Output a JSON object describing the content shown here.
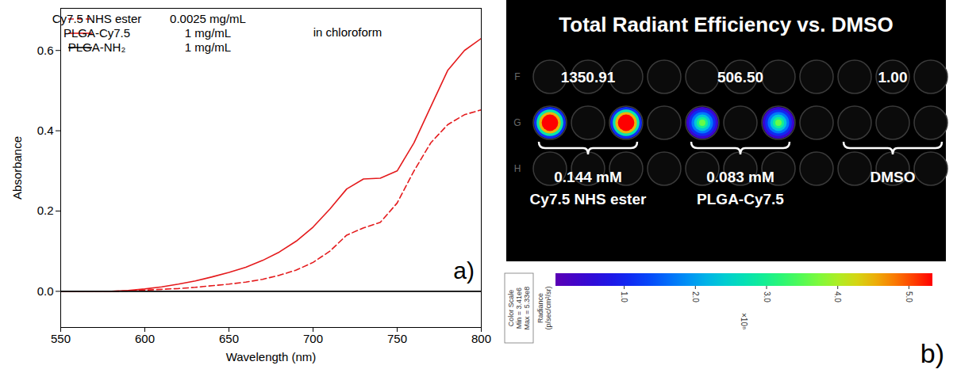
{
  "chart_data": {
    "type": "line",
    "panel_label": "a)",
    "x_label": "Wavelength (nm)",
    "y_label": "Absorbance",
    "annotations": [
      "in chloroform"
    ],
    "x": [
      550,
      560,
      570,
      580,
      590,
      600,
      610,
      620,
      630,
      640,
      650,
      660,
      670,
      680,
      690,
      700,
      710,
      720,
      730,
      740,
      750,
      760,
      770,
      780,
      790,
      800
    ],
    "xlim": [
      550,
      800
    ],
    "xticks": [
      550,
      600,
      650,
      700,
      750,
      800
    ],
    "ylim": [
      -0.09,
      0.705
    ],
    "yticks": [
      {
        "value": 0,
        "label": "0.0"
      },
      {
        "value": 0.2,
        "label": "0.2"
      },
      {
        "value": 0.4,
        "label": "0.4"
      },
      {
        "value": 0.6,
        "label": "0.6"
      }
    ],
    "grid": false,
    "legend": "top-left",
    "series": [
      {
        "name": "Cy7.5 NHS ester",
        "concentration": "0.0025 mg/mL",
        "color": "#e41a1c",
        "line_style": "dashed",
        "values": [
          0,
          0,
          0,
          0,
          0.001,
          0.003,
          0.005,
          0.007,
          0.01,
          0.014,
          0.018,
          0.023,
          0.03,
          0.04,
          0.053,
          0.072,
          0.1,
          0.14,
          0.158,
          0.172,
          0.22,
          0.3,
          0.37,
          0.415,
          0.44,
          0.452
        ]
      },
      {
        "name": "PLGA-Cy7.5",
        "concentration": "1 mg/mL",
        "color": "#e41a1c",
        "line_style": "solid",
        "values": [
          0,
          0,
          0,
          0,
          0.002,
          0.006,
          0.011,
          0.018,
          0.026,
          0.036,
          0.047,
          0.06,
          0.077,
          0.098,
          0.125,
          0.16,
          0.205,
          0.255,
          0.28,
          0.282,
          0.3,
          0.37,
          0.46,
          0.55,
          0.6,
          0.63
        ]
      },
      {
        "name": "PLGA-NH₂",
        "concentration": "1 mg/mL",
        "color": "#000000",
        "line_style": "solid",
        "values": [
          0,
          0,
          0,
          0,
          0,
          0,
          0,
          0,
          0,
          0,
          0,
          0,
          0,
          0,
          0,
          0,
          0,
          0,
          0,
          0,
          0,
          0,
          0,
          0,
          0,
          0
        ]
      }
    ]
  },
  "panel_b": {
    "panel_label": "b)",
    "title": "Total Radiant Efficiency vs. DMSO",
    "row_labels": [
      "F",
      "G",
      "H"
    ],
    "groups": [
      {
        "value": 1350.91,
        "value_label": "1350.91",
        "concentration": "0.144 mM",
        "name": "Cy7.5 NHS ester"
      },
      {
        "value": 506.5,
        "value_label": "506.50",
        "concentration": "0.083 mM",
        "name": "PLGA-Cy7.5"
      },
      {
        "value": 1.0,
        "value_label": "1.00",
        "name": "DMSO"
      }
    ],
    "colorbar": {
      "title_lines": [
        "Color Scale",
        "Min = 3.41e6",
        "Max = 5.33e8"
      ],
      "label_lines": [
        "Radiance",
        "(p/sec/cm²/sr)"
      ],
      "range": [
        3410000,
        533000000
      ],
      "ticks": [
        {
          "value": 100000000,
          "label": "1.0"
        },
        {
          "value": 200000000,
          "label": "2.0"
        },
        {
          "value": 300000000,
          "label": "3.0"
        },
        {
          "value": 400000000,
          "label": "4.0"
        },
        {
          "value": 500000000,
          "label": "5.0"
        }
      ],
      "multiplier": "×10⁸"
    }
  }
}
